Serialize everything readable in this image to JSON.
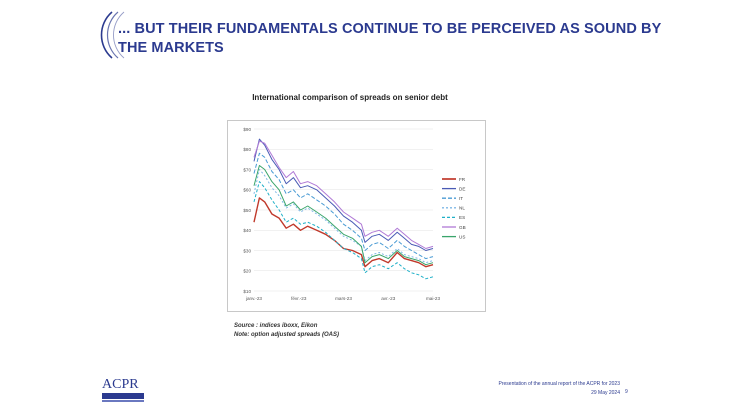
{
  "slide": {
    "title": "... BUT THEIR FUNDAMENTALS CONTINUE TO BE PERCEIVED AS SOUND BY THE MARKETS",
    "source_line1": "Source : indices iboxx, Eikon",
    "source_line2": "Note: option adjusted spreads (OAS)",
    "footer_line1": "Presentation of the annual report of the ACPR for 2023",
    "footer_line2": "29 May 2024",
    "page_number": "9",
    "logo_text": "ACPR",
    "accent_color": "#2b3a8f"
  },
  "chart_data": {
    "type": "line",
    "title": "International comparison of spreads on senior debt",
    "ylim": [
      10,
      90
    ],
    "yticks": [
      "$10",
      "$20",
      "$30",
      "$40",
      "$50",
      "$60",
      "$70",
      "$80",
      "$90"
    ],
    "xticks": [
      "janv.-23",
      "févr.-23",
      "mars-23",
      "avr.-23",
      "mai-23"
    ],
    "xlim": [
      0,
      100
    ],
    "legend_position": "right",
    "series": [
      {
        "name": "FR",
        "color": "#c0392b",
        "dash": "",
        "width": 1.4,
        "x": [
          0,
          3,
          6,
          10,
          14,
          18,
          22,
          26,
          30,
          35,
          40,
          45,
          50,
          55,
          60,
          62,
          66,
          70,
          75,
          80,
          84,
          88,
          92,
          96,
          100
        ],
        "values": [
          44,
          56,
          54,
          48,
          46,
          41,
          43,
          40,
          42,
          40,
          38,
          35,
          31,
          30,
          28,
          22,
          25,
          26,
          24,
          29,
          26,
          25,
          24,
          22,
          23
        ]
      },
      {
        "name": "DE",
        "color": "#4a5bb5",
        "dash": "",
        "width": 1.0,
        "x": [
          0,
          3,
          6,
          10,
          14,
          18,
          22,
          26,
          30,
          35,
          40,
          45,
          50,
          55,
          60,
          62,
          66,
          70,
          75,
          80,
          84,
          88,
          92,
          96,
          100
        ],
        "values": [
          74,
          85,
          82,
          75,
          70,
          63,
          66,
          61,
          62,
          60,
          56,
          52,
          47,
          44,
          40,
          34,
          37,
          38,
          35,
          39,
          36,
          33,
          32,
          30,
          31
        ]
      },
      {
        "name": "IT",
        "color": "#4a9bd4",
        "dash": "4,2",
        "width": 1.0,
        "x": [
          0,
          3,
          6,
          10,
          14,
          18,
          22,
          26,
          30,
          35,
          40,
          45,
          50,
          55,
          60,
          62,
          66,
          70,
          75,
          80,
          84,
          88,
          92,
          96,
          100
        ],
        "values": [
          68,
          78,
          76,
          69,
          65,
          58,
          60,
          56,
          58,
          55,
          52,
          48,
          43,
          40,
          36,
          30,
          33,
          34,
          31,
          35,
          32,
          30,
          28,
          26,
          27
        ]
      },
      {
        "name": "NL",
        "color": "#7fb8e6",
        "dash": "2,2",
        "width": 1.0,
        "x": [
          0,
          3,
          6,
          10,
          14,
          18,
          22,
          26,
          30,
          35,
          40,
          45,
          50,
          55,
          60,
          62,
          66,
          70,
          75,
          80,
          84,
          88,
          92,
          96,
          100
        ],
        "values": [
          58,
          70,
          67,
          61,
          57,
          51,
          53,
          49,
          51,
          48,
          45,
          41,
          37,
          35,
          32,
          25,
          28,
          29,
          27,
          31,
          28,
          27,
          26,
          24,
          25
        ]
      },
      {
        "name": "ES",
        "color": "#1fb0c8",
        "dash": "3,2",
        "width": 1.0,
        "x": [
          0,
          3,
          6,
          10,
          14,
          18,
          22,
          26,
          30,
          35,
          40,
          45,
          50,
          55,
          60,
          62,
          66,
          70,
          75,
          80,
          84,
          88,
          92,
          96,
          100
        ],
        "values": [
          54,
          64,
          61,
          55,
          50,
          44,
          46,
          43,
          44,
          42,
          39,
          35,
          31,
          29,
          26,
          19,
          22,
          23,
          21,
          24,
          21,
          19,
          18,
          16,
          17
        ]
      },
      {
        "name": "GB",
        "color": "#b07ad6",
        "dash": "",
        "width": 1.0,
        "x": [
          0,
          3,
          6,
          10,
          14,
          18,
          22,
          26,
          30,
          35,
          40,
          45,
          50,
          55,
          60,
          62,
          66,
          70,
          75,
          80,
          84,
          88,
          92,
          96,
          100
        ],
        "values": [
          76,
          84,
          83,
          77,
          71,
          66,
          69,
          63,
          64,
          62,
          58,
          54,
          49,
          46,
          43,
          37,
          39,
          40,
          37,
          41,
          38,
          35,
          33,
          31,
          32
        ]
      },
      {
        "name": "US",
        "color": "#3aa56b",
        "dash": "",
        "width": 1.0,
        "x": [
          0,
          3,
          6,
          10,
          14,
          18,
          22,
          26,
          30,
          35,
          40,
          45,
          50,
          55,
          60,
          62,
          66,
          70,
          75,
          80,
          84,
          88,
          92,
          96,
          100
        ],
        "values": [
          62,
          72,
          70,
          64,
          60,
          52,
          54,
          50,
          52,
          49,
          46,
          42,
          38,
          36,
          32,
          24,
          27,
          28,
          26,
          30,
          27,
          26,
          25,
          23,
          24
        ]
      }
    ]
  }
}
